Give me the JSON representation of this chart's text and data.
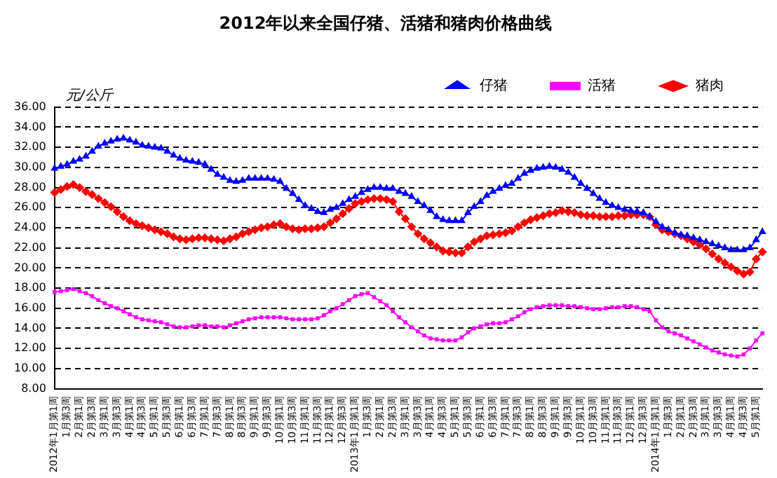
{
  "chart_data": {
    "type": "line",
    "title": "2012年以来全国仔猪、活猪和猪肉价格曲线",
    "ylabel": "元/公斤",
    "categories": [
      "2012年1月第1周",
      null,
      "1月第3周",
      null,
      "2月第1周",
      null,
      "2月第3周",
      null,
      "3月第1周",
      null,
      "3月第3周",
      null,
      "4月第1周",
      null,
      "4月第3周",
      null,
      "5月第1周",
      null,
      "5月第3周",
      null,
      "6月第1周",
      null,
      "6月第3周",
      null,
      "7月第1周",
      null,
      "7月第3周",
      null,
      "8月第1周",
      null,
      "8月第3周",
      null,
      "9月第1周",
      null,
      "9月第3周",
      null,
      "10月第1周",
      null,
      "10月第3周",
      null,
      "11月第1周",
      null,
      "11月第3周",
      null,
      "12月第1周",
      null,
      "12月第3周",
      null,
      "2013年1月第1周",
      null,
      "1月第3周",
      null,
      "2月第1周",
      null,
      "2月第3周",
      null,
      "3月第1周",
      null,
      "3月第3周",
      null,
      "4月第1周",
      null,
      "4月第3周",
      null,
      "5月第1周",
      null,
      "5月第3周",
      null,
      "6月第1周",
      null,
      "6月第3周",
      null,
      "7月第1周",
      null,
      "7月第3周",
      null,
      "8月第1周",
      null,
      "8月第3周",
      null,
      "9月第1周",
      null,
      "9月第3周",
      null,
      "10月第1周",
      null,
      "10月第3周",
      null,
      "11月第1周",
      null,
      "11月第3周",
      null,
      "12月第1周",
      null,
      "12月第3周",
      null,
      "2014年1月第1周",
      null,
      "1月第3周",
      null,
      "2月第1周",
      null,
      "2月第3周",
      null,
      "3月第1周",
      null,
      "3月第3周",
      null,
      "4月第1周",
      null,
      "4月第3周",
      null,
      "5月第1周",
      null
    ],
    "series": [
      {
        "name": "仔猪",
        "color": "#0000ff",
        "marker": "triangle",
        "values": [
          29.9,
          30.1,
          30.3,
          30.6,
          30.8,
          31.1,
          31.6,
          32.1,
          32.4,
          32.6,
          32.8,
          32.9,
          32.7,
          32.5,
          32.2,
          32.1,
          32.0,
          31.9,
          31.6,
          31.2,
          30.9,
          30.7,
          30.6,
          30.5,
          30.3,
          29.8,
          29.3,
          29.0,
          28.7,
          28.6,
          28.7,
          28.9,
          28.9,
          28.9,
          28.9,
          28.8,
          28.6,
          27.9,
          27.4,
          26.8,
          26.2,
          25.9,
          25.6,
          25.5,
          25.8,
          26.0,
          26.4,
          26.8,
          27.1,
          27.5,
          27.8,
          28.0,
          28.0,
          27.9,
          27.9,
          27.6,
          27.4,
          27.1,
          26.6,
          26.2,
          25.7,
          25.1,
          24.8,
          24.7,
          24.7,
          24.7,
          25.5,
          26.1,
          26.6,
          27.2,
          27.6,
          27.9,
          28.2,
          28.4,
          28.9,
          29.4,
          29.7,
          29.9,
          30.0,
          30.1,
          30.0,
          29.8,
          29.5,
          29.0,
          28.4,
          27.9,
          27.4,
          26.9,
          26.5,
          26.2,
          26.0,
          25.8,
          25.7,
          25.6,
          25.5,
          25.1,
          24.6,
          24.1,
          23.8,
          23.5,
          23.3,
          23.2,
          23.0,
          22.8,
          22.6,
          22.4,
          22.2,
          22.0,
          21.8,
          21.8,
          21.8,
          22.0,
          22.8,
          23.6
        ]
      },
      {
        "name": "活猪",
        "color": "#ff00ff",
        "marker": "square",
        "values": [
          17.6,
          17.7,
          17.8,
          17.9,
          17.7,
          17.5,
          17.2,
          16.8,
          16.5,
          16.2,
          16.0,
          15.7,
          15.4,
          15.1,
          14.9,
          14.8,
          14.7,
          14.6,
          14.4,
          14.2,
          14.1,
          14.1,
          14.2,
          14.3,
          14.3,
          14.2,
          14.2,
          14.1,
          14.3,
          14.5,
          14.7,
          14.9,
          15.0,
          15.1,
          15.1,
          15.1,
          15.1,
          15.0,
          14.9,
          14.9,
          14.9,
          14.9,
          15.0,
          15.3,
          15.7,
          16.0,
          16.4,
          16.8,
          17.2,
          17.4,
          17.5,
          17.1,
          16.7,
          16.3,
          15.7,
          15.1,
          14.6,
          14.1,
          13.7,
          13.3,
          13.0,
          12.9,
          12.8,
          12.8,
          12.8,
          13.1,
          13.6,
          14.0,
          14.2,
          14.4,
          14.5,
          14.5,
          14.6,
          14.9,
          15.2,
          15.6,
          15.9,
          16.1,
          16.2,
          16.3,
          16.3,
          16.3,
          16.2,
          16.2,
          16.1,
          16.0,
          15.9,
          15.9,
          16.0,
          16.1,
          16.1,
          16.2,
          16.2,
          16.1,
          15.9,
          15.7,
          14.8,
          14.1,
          13.7,
          13.5,
          13.3,
          13.0,
          12.7,
          12.4,
          12.1,
          11.8,
          11.6,
          11.4,
          11.3,
          11.2,
          11.4,
          12.0,
          12.8,
          13.5
        ]
      },
      {
        "name": "猪肉",
        "color": "#ff0000",
        "marker": "diamond",
        "values": [
          27.5,
          27.8,
          28.1,
          28.3,
          28.0,
          27.6,
          27.3,
          26.9,
          26.5,
          26.1,
          25.6,
          25.1,
          24.7,
          24.4,
          24.2,
          24.0,
          23.8,
          23.6,
          23.4,
          23.1,
          22.9,
          22.8,
          22.9,
          23.0,
          23.0,
          22.9,
          22.8,
          22.7,
          22.9,
          23.1,
          23.4,
          23.6,
          23.8,
          24.0,
          24.1,
          24.3,
          24.4,
          24.1,
          23.9,
          23.8,
          23.9,
          23.9,
          24.0,
          24.1,
          24.5,
          24.9,
          25.4,
          25.9,
          26.4,
          26.6,
          26.8,
          26.9,
          26.9,
          26.8,
          26.6,
          25.6,
          24.9,
          24.1,
          23.4,
          22.9,
          22.5,
          22.1,
          21.7,
          21.6,
          21.5,
          21.5,
          22.1,
          22.6,
          22.9,
          23.2,
          23.3,
          23.4,
          23.5,
          23.7,
          24.1,
          24.5,
          24.8,
          25.0,
          25.2,
          25.4,
          25.5,
          25.7,
          25.6,
          25.5,
          25.3,
          25.2,
          25.2,
          25.1,
          25.1,
          25.1,
          25.2,
          25.2,
          25.3,
          25.3,
          25.3,
          25.1,
          24.3,
          23.8,
          23.6,
          23.4,
          23.2,
          22.9,
          22.6,
          22.3,
          21.9,
          21.4,
          20.9,
          20.5,
          20.1,
          19.7,
          19.4,
          19.6,
          20.9,
          21.6
        ]
      }
    ],
    "ylim": [
      8,
      36
    ],
    "yticks": [
      {
        "value": 8,
        "label": "8.00"
      },
      {
        "value": 10,
        "label": "10.00"
      },
      {
        "value": 12,
        "label": "12.00"
      },
      {
        "value": 14,
        "label": "14.00"
      },
      {
        "value": 16,
        "label": "16.00"
      },
      {
        "value": 18,
        "label": "18.00"
      },
      {
        "value": 20,
        "label": "20.00"
      },
      {
        "value": 22,
        "label": "22.00"
      },
      {
        "value": 24,
        "label": "24.00"
      },
      {
        "value": 26,
        "label": "26.00"
      },
      {
        "value": 28,
        "label": "28.00"
      },
      {
        "value": 30,
        "label": "30.00"
      },
      {
        "value": 32,
        "label": "32.00"
      },
      {
        "value": 34,
        "label": "34.00"
      },
      {
        "value": 36,
        "label": "36.00"
      }
    ],
    "grid": "y",
    "legend": "top right",
    "line_style": "solid"
  }
}
